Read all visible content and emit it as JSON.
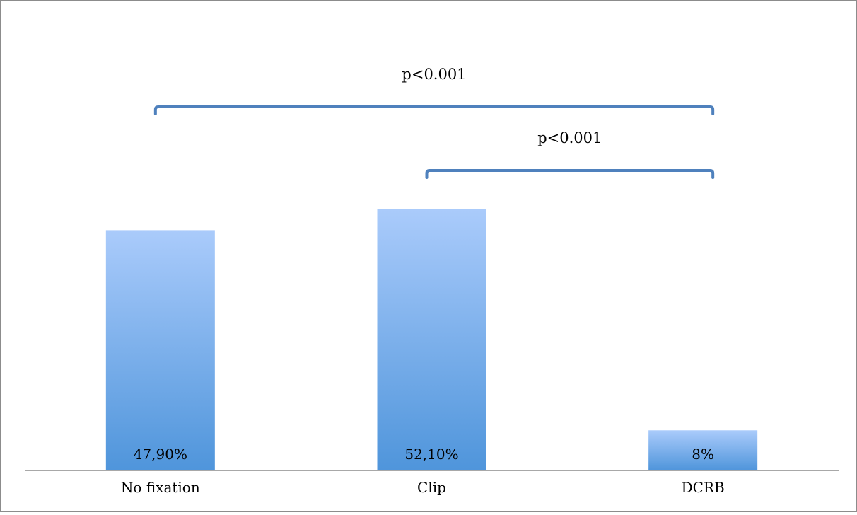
{
  "chart_data": {
    "type": "bar",
    "categories": [
      "No fixation",
      "Clip",
      "DCRB"
    ],
    "values": [
      47.9,
      52.1,
      8
    ],
    "value_labels": [
      "47,90%",
      "52,10%",
      "8%"
    ],
    "title": "",
    "xlabel": "",
    "ylabel": "",
    "ylim": [
      0,
      70
    ],
    "grid": false,
    "legend": "none",
    "annotations": [
      {
        "text": "p<0.001",
        "from": "No fixation",
        "to": "DCRB"
      },
      {
        "text": "p<0.001",
        "from": "Clip",
        "to": "DCRB"
      }
    ],
    "colors": {
      "bar_top": "#aacbfb",
      "bar_bottom": "#4f95db",
      "bracket": "#4f81bd",
      "axis": "#8c8c8c"
    }
  }
}
